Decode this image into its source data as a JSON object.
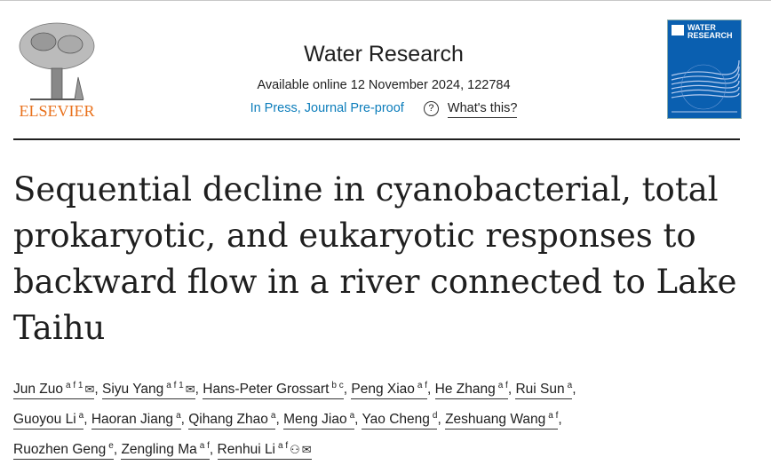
{
  "publisher": {
    "logo_text": "ELSEVIER"
  },
  "journal": {
    "title": "Water Research",
    "availability": "Available online 12 November 2024, 122784",
    "status": "In Press, Journal Pre-proof",
    "help_label": "What's this?",
    "cover_text": "WATER RESEARCH"
  },
  "article": {
    "title": "Sequential decline in cyanobacterial, total prokaryotic, and eukaryotic responses to backward flow in a river connected to Lake Taihu"
  },
  "authors": [
    {
      "name": "Jun Zuo",
      "sup": "a f 1",
      "icons": [
        "email-icon"
      ]
    },
    {
      "name": "Siyu Yang",
      "sup": "a f 1",
      "icons": [
        "email-icon"
      ]
    },
    {
      "name": "Hans-Peter Grossart",
      "sup": "b c",
      "icons": []
    },
    {
      "name": "Peng Xiao",
      "sup": "a f",
      "icons": []
    },
    {
      "name": "He Zhang",
      "sup": "a f",
      "icons": []
    },
    {
      "name": "Rui Sun",
      "sup": "a",
      "icons": []
    },
    {
      "name": "Guoyou Li",
      "sup": "a",
      "icons": []
    },
    {
      "name": "Haoran Jiang",
      "sup": "a",
      "icons": []
    },
    {
      "name": "Qihang Zhao",
      "sup": "a",
      "icons": []
    },
    {
      "name": "Meng Jiao",
      "sup": "a",
      "icons": []
    },
    {
      "name": "Yao Cheng",
      "sup": "d",
      "icons": []
    },
    {
      "name": "Zeshuang Wang",
      "sup": "a f",
      "icons": []
    },
    {
      "name": "Ruozhen Geng",
      "sup": "e",
      "icons": []
    },
    {
      "name": "Zengling Ma",
      "sup": "a f",
      "icons": []
    },
    {
      "name": "Renhui Li",
      "sup": "a f",
      "icons": [
        "person-icon",
        "email-icon"
      ]
    }
  ]
}
